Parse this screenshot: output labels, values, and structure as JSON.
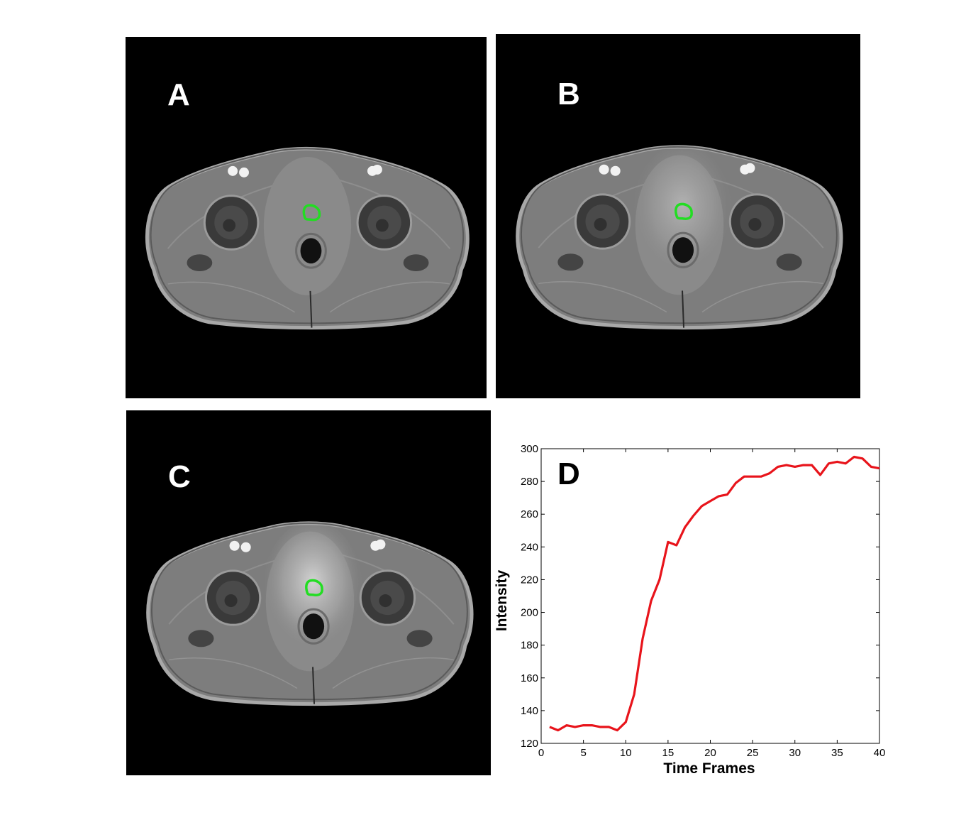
{
  "panels": {
    "a": {
      "label": "A",
      "roi_color": "#22dd22",
      "enhancement": 0.0
    },
    "b": {
      "label": "B",
      "roi_color": "#22dd22",
      "enhancement": 0.55
    },
    "c": {
      "label": "C",
      "roi_color": "#22dd22",
      "enhancement": 1.0
    }
  },
  "chart_data": {
    "type": "line",
    "panel_label": "D",
    "xlabel": "Time Frames",
    "ylabel": "Intensity",
    "xlim": [
      0,
      40
    ],
    "ylim": [
      120,
      300
    ],
    "xticks": [
      0,
      5,
      10,
      15,
      20,
      25,
      30,
      35,
      40
    ],
    "yticks": [
      120,
      140,
      160,
      180,
      200,
      220,
      240,
      260,
      280,
      300
    ],
    "grid": false,
    "series": [
      {
        "color": "#e8141b",
        "x": [
          1,
          2,
          3,
          4,
          5,
          6,
          7,
          8,
          9,
          10,
          11,
          12,
          13,
          14,
          15,
          16,
          17,
          18,
          19,
          20,
          21,
          22,
          23,
          24,
          25,
          26,
          27,
          28,
          29,
          30,
          31,
          32,
          33,
          34,
          35,
          36,
          37,
          38,
          39,
          40
        ],
        "y": [
          130,
          128,
          131,
          130,
          131,
          131,
          130,
          130,
          128,
          133,
          150,
          184,
          207,
          220,
          243,
          241,
          252,
          259,
          265,
          268,
          271,
          272,
          279,
          283,
          283,
          283,
          285,
          289,
          290,
          289,
          290,
          290,
          284,
          291,
          292,
          291,
          295,
          294,
          289,
          288
        ]
      }
    ]
  }
}
